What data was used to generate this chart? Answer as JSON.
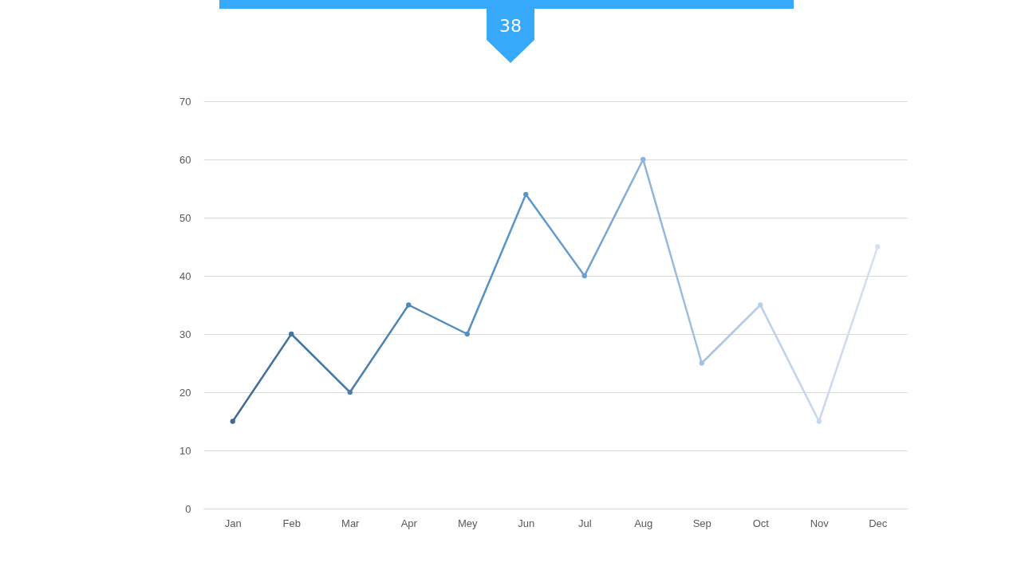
{
  "chart_data": {
    "type": "line",
    "annotations": [
      "38"
    ],
    "categories": [
      "Jan",
      "Feb",
      "Mar",
      "Apr",
      "Mey",
      "Jun",
      "Jul",
      "Aug",
      "Sep",
      "Oct",
      "Nov",
      "Dec"
    ],
    "values": [
      15,
      30,
      20,
      35,
      30,
      54,
      40,
      60,
      25,
      35,
      15,
      45
    ],
    "colors": [
      "#3e6a93",
      "#44749f",
      "#4a7eac",
      "#4f87b9",
      "#548fc3",
      "#5a96cb",
      "#6a9fd2",
      "#8db2db",
      "#a3c0e3",
      "#b7cdea",
      "#c8d7ef",
      "#d4e0f2"
    ],
    "ylim": [
      0,
      70
    ],
    "yticks": [
      0,
      10,
      20,
      30,
      40,
      50,
      60,
      70
    ],
    "grid": "y",
    "marker": "circle",
    "line_style": "solid"
  }
}
